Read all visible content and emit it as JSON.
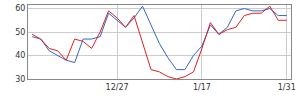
{
  "chart_data": {
    "type": "line",
    "categories": [
      null,
      null,
      null,
      null,
      null,
      null,
      null,
      null,
      null,
      null,
      "12/27",
      null,
      null,
      null,
      null,
      null,
      null,
      null,
      null,
      null,
      "1/17",
      null,
      null,
      null,
      null,
      null,
      null,
      null,
      null,
      null,
      "1/31"
    ],
    "series": [
      {
        "color": "#3366cc",
        "values": [
          48,
          47,
          42,
          40,
          38,
          37,
          47,
          47,
          48,
          58,
          55,
          52,
          56,
          61,
          53,
          45,
          39,
          34,
          34,
          40,
          44,
          53,
          49,
          52,
          59,
          60,
          59,
          59,
          60,
          57,
          57
        ]
      },
      {
        "color": "#dd2222",
        "values": [
          49,
          47,
          43,
          42,
          38,
          47,
          46,
          43,
          50,
          59,
          56,
          52,
          57,
          45,
          34,
          33,
          31,
          30,
          31,
          33,
          43,
          54,
          49,
          51,
          52,
          57,
          58,
          58,
          61,
          55,
          55
        ]
      }
    ],
    "ylim": [
      30,
      61.5
    ],
    "yticks": [
      30,
      40,
      50,
      60
    ],
    "grid": true
  }
}
